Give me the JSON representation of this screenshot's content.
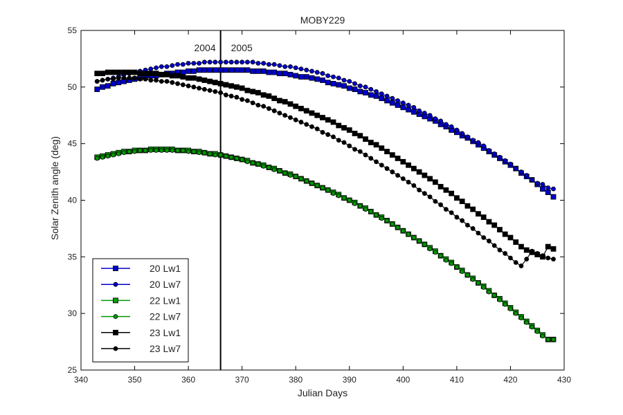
{
  "chart_data": {
    "type": "line",
    "title": "MOBY229",
    "xlabel": "Julian Days",
    "ylabel": "Solar Zenith angle (deg)",
    "xlim": [
      340,
      430
    ],
    "ylim": [
      25,
      55
    ],
    "xticks": [
      340,
      350,
      360,
      370,
      380,
      390,
      400,
      410,
      420,
      430
    ],
    "yticks": [
      25,
      30,
      35,
      40,
      45,
      50,
      55
    ],
    "grid": false,
    "legend_position": "bottom-left",
    "vline": {
      "x": 366,
      "left_label": "2004",
      "right_label": "2005"
    },
    "x": [
      343,
      344,
      345,
      346,
      347,
      348,
      349,
      350,
      351,
      352,
      353,
      354,
      355,
      356,
      357,
      358,
      359,
      360,
      361,
      362,
      363,
      364,
      365,
      366,
      367,
      368,
      369,
      370,
      371,
      372,
      373,
      374,
      375,
      376,
      377,
      378,
      379,
      380,
      381,
      382,
      383,
      384,
      385,
      386,
      387,
      388,
      389,
      390,
      391,
      392,
      393,
      394,
      395,
      396,
      397,
      398,
      399,
      400,
      401,
      402,
      403,
      404,
      405,
      406,
      407,
      408,
      409,
      410,
      411,
      412,
      413,
      414,
      415,
      416,
      417,
      418,
      419,
      420,
      421,
      422,
      423,
      424,
      425,
      426,
      427,
      428
    ],
    "series": [
      {
        "name": "20 Lw1",
        "color": "#0000cc",
        "marker": "square",
        "values": [
          49.8,
          50.0,
          50.1,
          50.3,
          50.4,
          50.5,
          50.6,
          50.7,
          50.8,
          50.9,
          51.0,
          51.0,
          51.1,
          51.2,
          51.2,
          51.3,
          51.3,
          51.4,
          51.4,
          51.5,
          51.5,
          51.5,
          51.5,
          51.5,
          51.5,
          51.5,
          51.5,
          51.5,
          51.5,
          51.4,
          51.4,
          51.4,
          51.3,
          51.3,
          51.2,
          51.2,
          51.1,
          51.0,
          50.9,
          50.9,
          50.8,
          50.7,
          50.6,
          50.4,
          50.3,
          50.2,
          50.1,
          49.9,
          49.8,
          49.6,
          49.5,
          49.3,
          49.2,
          49.0,
          48.8,
          48.6,
          48.4,
          48.2,
          48.0,
          47.8,
          47.6,
          47.4,
          47.2,
          47.0,
          46.7,
          46.5,
          46.2,
          46.0,
          45.7,
          45.5,
          45.2,
          44.9,
          44.6,
          44.3,
          44.0,
          43.7,
          43.4,
          43.1,
          42.8,
          42.4,
          42.1,
          41.8,
          41.4,
          41.0,
          40.7,
          40.3
        ]
      },
      {
        "name": "20 Lw7",
        "color": "#0000cc",
        "marker": "circle",
        "values": [
          50.5,
          50.6,
          50.7,
          50.8,
          50.9,
          51.1,
          51.2,
          51.3,
          51.4,
          51.5,
          51.6,
          51.7,
          51.8,
          51.8,
          51.9,
          52.0,
          52.0,
          52.1,
          52.1,
          52.1,
          52.2,
          52.2,
          52.2,
          52.2,
          52.2,
          52.2,
          52.2,
          52.2,
          52.2,
          52.2,
          52.1,
          52.1,
          52.0,
          52.0,
          51.9,
          51.8,
          51.8,
          51.7,
          51.6,
          51.5,
          51.4,
          51.3,
          51.2,
          51.0,
          50.9,
          50.8,
          50.6,
          50.5,
          50.3,
          50.1,
          50.0,
          49.8,
          49.6,
          49.4,
          49.2,
          49.0,
          48.8,
          48.6,
          48.4,
          48.2,
          47.9,
          47.7,
          47.5,
          47.2,
          47.0,
          46.7,
          46.5,
          46.2,
          45.9,
          45.6,
          45.3,
          45.1,
          44.8,
          44.4,
          44.1,
          43.8,
          43.5,
          43.2,
          42.8,
          42.5,
          42.2,
          41.8,
          41.5,
          41.4,
          41.1,
          41.0
        ]
      },
      {
        "name": "22 Lw1",
        "color": "#009900",
        "marker": "square",
        "values": [
          43.8,
          43.9,
          44.0,
          44.1,
          44.2,
          44.3,
          44.3,
          44.4,
          44.4,
          44.4,
          44.5,
          44.5,
          44.5,
          44.5,
          44.5,
          44.4,
          44.4,
          44.4,
          44.3,
          44.3,
          44.2,
          44.1,
          44.1,
          44.0,
          43.9,
          43.8,
          43.7,
          43.6,
          43.5,
          43.3,
          43.2,
          43.1,
          42.9,
          42.8,
          42.6,
          42.4,
          42.3,
          42.1,
          41.9,
          41.7,
          41.5,
          41.3,
          41.1,
          40.9,
          40.7,
          40.5,
          40.2,
          40.0,
          39.8,
          39.5,
          39.3,
          39.0,
          38.7,
          38.5,
          38.2,
          37.9,
          37.6,
          37.3,
          37.0,
          36.7,
          36.4,
          36.1,
          35.8,
          35.5,
          35.1,
          34.8,
          34.5,
          34.1,
          33.8,
          33.4,
          33.1,
          32.7,
          32.4,
          32.0,
          31.6,
          31.3,
          30.9,
          30.5,
          30.1,
          29.7,
          29.3,
          28.9,
          28.5,
          28.1,
          27.7,
          27.7
        ]
      },
      {
        "name": "22 Lw7",
        "color": "#009900",
        "marker": "circle",
        "values": [
          43.7,
          43.8,
          43.9,
          44.0,
          44.1,
          44.2,
          44.3,
          44.3,
          44.4,
          44.4,
          44.4,
          44.4,
          44.4,
          44.4,
          44.4,
          44.4,
          44.4,
          44.3,
          44.3,
          44.2,
          44.2,
          44.1,
          44.0,
          44.0,
          43.9,
          43.8,
          43.7,
          43.6,
          43.4,
          43.3,
          43.2,
          43.0,
          42.9,
          42.7,
          42.6,
          42.4,
          42.2,
          42.1,
          41.9,
          41.7,
          41.5,
          41.3,
          41.1,
          40.9,
          40.6,
          40.4,
          40.2,
          40.0,
          39.7,
          39.5,
          39.2,
          39.0,
          38.7,
          38.4,
          38.2,
          37.9,
          37.6,
          37.3,
          37.0,
          36.7,
          36.4,
          36.1,
          35.7,
          35.4,
          35.1,
          34.7,
          34.4,
          34.1,
          33.7,
          33.4,
          33.0,
          32.7,
          32.3,
          31.9,
          31.6,
          31.2,
          30.8,
          30.4,
          30.0,
          29.6,
          29.2,
          28.8,
          28.4,
          28.0,
          27.7,
          27.7
        ]
      },
      {
        "name": "23 Lw1",
        "color": "#000000",
        "marker": "square",
        "values": [
          51.2,
          51.2,
          51.3,
          51.3,
          51.3,
          51.3,
          51.3,
          51.3,
          51.2,
          51.2,
          51.2,
          51.2,
          51.1,
          51.1,
          51.0,
          51.0,
          50.9,
          50.8,
          50.8,
          50.7,
          50.6,
          50.5,
          50.4,
          50.3,
          50.2,
          50.1,
          50.0,
          49.9,
          49.7,
          49.6,
          49.5,
          49.3,
          49.2,
          49.0,
          48.8,
          48.7,
          48.5,
          48.3,
          48.1,
          47.9,
          47.7,
          47.5,
          47.3,
          47.1,
          46.9,
          46.6,
          46.4,
          46.2,
          45.9,
          45.7,
          45.4,
          45.1,
          44.9,
          44.6,
          44.3,
          44.0,
          43.7,
          43.4,
          43.1,
          42.8,
          42.5,
          42.2,
          41.9,
          41.6,
          41.2,
          40.9,
          40.6,
          40.2,
          39.9,
          39.5,
          39.2,
          38.8,
          38.5,
          38.1,
          37.8,
          37.4,
          37.0,
          36.7,
          36.3,
          35.9,
          35.6,
          35.4,
          35.2,
          35.0,
          35.9,
          35.7
        ]
      },
      {
        "name": "23 Lw7",
        "color": "#000000",
        "marker": "circle",
        "values": [
          50.5,
          50.6,
          50.7,
          50.7,
          50.8,
          50.8,
          50.8,
          50.8,
          50.7,
          50.7,
          50.6,
          50.6,
          50.5,
          50.5,
          50.4,
          50.3,
          50.2,
          50.1,
          50.0,
          49.9,
          49.8,
          49.7,
          49.6,
          49.5,
          49.3,
          49.2,
          49.1,
          48.9,
          48.8,
          48.6,
          48.4,
          48.3,
          48.1,
          47.9,
          47.7,
          47.5,
          47.3,
          47.1,
          46.9,
          46.7,
          46.5,
          46.3,
          46.0,
          45.8,
          45.6,
          45.3,
          45.1,
          44.8,
          44.5,
          44.3,
          44.0,
          43.7,
          43.4,
          43.1,
          42.8,
          42.5,
          42.2,
          41.9,
          41.6,
          41.3,
          40.9,
          40.6,
          40.3,
          39.9,
          39.6,
          39.2,
          38.9,
          38.5,
          38.2,
          37.8,
          37.5,
          37.1,
          36.7,
          36.4,
          36.0,
          35.6,
          35.3,
          34.9,
          34.5,
          34.2,
          34.8,
          35.5,
          35.3,
          35.1,
          34.9,
          34.8
        ]
      }
    ]
  }
}
